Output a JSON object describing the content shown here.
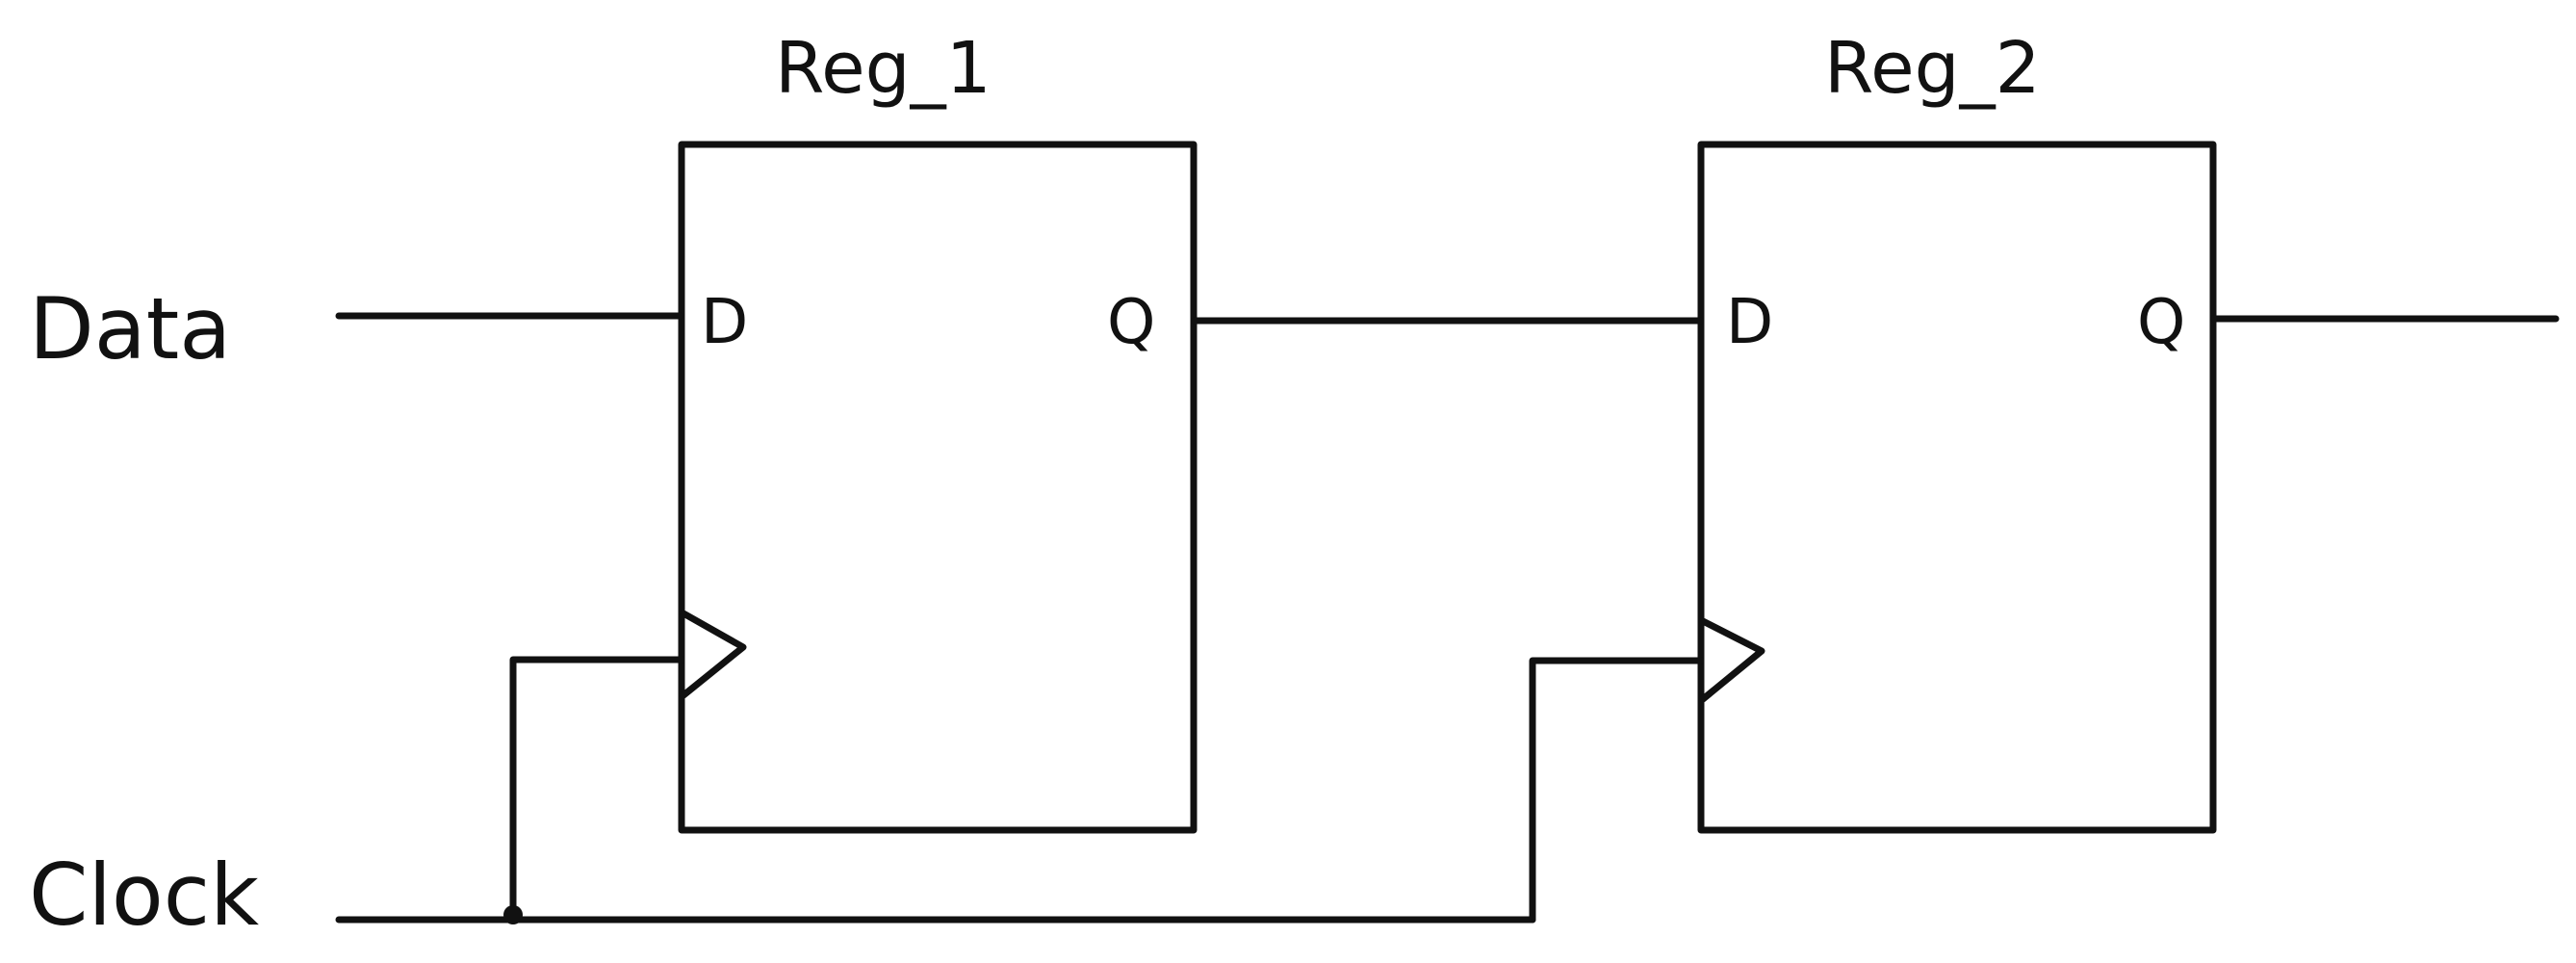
{
  "labels": {
    "data_input": "Data",
    "clock_input": "Clock"
  },
  "registers": [
    {
      "title": "Reg_1",
      "d_port": "D",
      "q_port": "Q"
    },
    {
      "title": "Reg_2",
      "d_port": "D",
      "q_port": "Q"
    }
  ],
  "colors": {
    "ink": "#111111",
    "background": "#ffffff"
  }
}
